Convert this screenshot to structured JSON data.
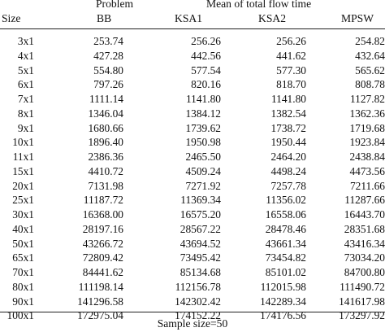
{
  "header": {
    "problem_label": "Problem",
    "mean_label": "Mean of total flow time",
    "size_label": "Size",
    "columns": [
      "BB",
      "KSA1",
      "KSA2",
      "MPSW"
    ]
  },
  "rows": [
    {
      "size": "3x1",
      "bb": "253.74",
      "ksa1": "256.26",
      "ksa2": "256.26",
      "mpsw": "254.82"
    },
    {
      "size": "4x1",
      "bb": "427.28",
      "ksa1": "442.56",
      "ksa2": "441.62",
      "mpsw": "432.64"
    },
    {
      "size": "5x1",
      "bb": "554.80",
      "ksa1": "577.54",
      "ksa2": "577.30",
      "mpsw": "565.62"
    },
    {
      "size": "6x1",
      "bb": "797.26",
      "ksa1": "820.16",
      "ksa2": "818.70",
      "mpsw": "808.78"
    },
    {
      "size": "7x1",
      "bb": "1111.14",
      "ksa1": "1141.80",
      "ksa2": "1141.80",
      "mpsw": "1127.82"
    },
    {
      "size": "8x1",
      "bb": "1346.04",
      "ksa1": "1384.12",
      "ksa2": "1382.54",
      "mpsw": "1362.36"
    },
    {
      "size": "9x1",
      "bb": "1680.66",
      "ksa1": "1739.62",
      "ksa2": "1738.72",
      "mpsw": "1719.68"
    },
    {
      "size": "10x1",
      "bb": "1896.40",
      "ksa1": "1950.98",
      "ksa2": "1950.44",
      "mpsw": "1923.84"
    },
    {
      "size": "11x1",
      "bb": "2386.36",
      "ksa1": "2465.50",
      "ksa2": "2464.20",
      "mpsw": "2438.84"
    },
    {
      "size": "15x1",
      "bb": "4410.72",
      "ksa1": "4509.24",
      "ksa2": "4498.24",
      "mpsw": "4473.56"
    },
    {
      "size": "20x1",
      "bb": "7131.98",
      "ksa1": "7271.92",
      "ksa2": "7257.78",
      "mpsw": "7211.66"
    },
    {
      "size": "25x1",
      "bb": "11187.72",
      "ksa1": "11369.34",
      "ksa2": "11356.02",
      "mpsw": "11287.66"
    },
    {
      "size": "30x1",
      "bb": "16368.00",
      "ksa1": "16575.20",
      "ksa2": "16558.06",
      "mpsw": "16443.70"
    },
    {
      "size": "40x1",
      "bb": "28197.16",
      "ksa1": "28567.22",
      "ksa2": "28478.46",
      "mpsw": "28351.68"
    },
    {
      "size": "50x1",
      "bb": "43266.72",
      "ksa1": "43694.52",
      "ksa2": "43661.34",
      "mpsw": "43416.34"
    },
    {
      "size": "65x1",
      "bb": "72809.42",
      "ksa1": "73495.42",
      "ksa2": "73454.82",
      "mpsw": "73034.20"
    },
    {
      "size": "70x1",
      "bb": "84441.62",
      "ksa1": "85134.68",
      "ksa2": "85101.02",
      "mpsw": "84700.80"
    },
    {
      "size": "80x1",
      "bb": "111198.14",
      "ksa1": "112156.78",
      "ksa2": "112015.98",
      "mpsw": "111490.72"
    },
    {
      "size": "90x1",
      "bb": "141296.58",
      "ksa1": "142302.42",
      "ksa2": "142289.34",
      "mpsw": "141617.98"
    },
    {
      "size": "100x1",
      "bb": "172975.04",
      "ksa1": "174152.22",
      "ksa2": "174176.56",
      "mpsw": "173297.92"
    }
  ],
  "footer": {
    "note": "Sample size=50"
  }
}
